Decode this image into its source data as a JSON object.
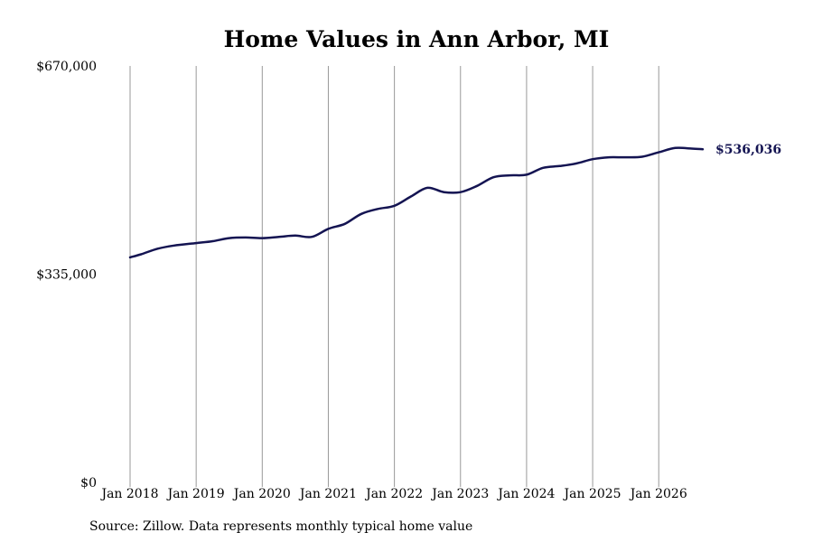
{
  "chart_data": {
    "type": "line",
    "title": "Home Values in Ann Arbor, MI",
    "xlabel": "",
    "ylabel": "",
    "ylim": [
      0,
      670000
    ],
    "xlim": [
      "2018-01",
      "2026-09"
    ],
    "y_ticks": [
      {
        "value": 0,
        "label": "$0"
      },
      {
        "value": 335000,
        "label": "$335,000"
      },
      {
        "value": 670000,
        "label": "$670,000"
      }
    ],
    "x_ticks": [
      {
        "date": "2018-01",
        "label": "Jan 2018"
      },
      {
        "date": "2019-01",
        "label": "Jan 2019"
      },
      {
        "date": "2020-01",
        "label": "Jan 2020"
      },
      {
        "date": "2021-01",
        "label": "Jan 2021"
      },
      {
        "date": "2022-01",
        "label": "Jan 2022"
      },
      {
        "date": "2023-01",
        "label": "Jan 2023"
      },
      {
        "date": "2024-01",
        "label": "Jan 2024"
      },
      {
        "date": "2025-01",
        "label": "Jan 2025"
      },
      {
        "date": "2026-01",
        "label": "Jan 2026"
      }
    ],
    "vertical_grid": true,
    "horizontal_grid": false,
    "line_color": "#141452",
    "series": [
      {
        "values": [
          {
            "x": "2018-01",
            "y": 362000
          },
          {
            "x": "2018-03",
            "y": 367000
          },
          {
            "x": "2018-06",
            "y": 376000
          },
          {
            "x": "2018-09",
            "y": 381000
          },
          {
            "x": "2019-01",
            "y": 385000
          },
          {
            "x": "2019-04",
            "y": 388000
          },
          {
            "x": "2019-07",
            "y": 393000
          },
          {
            "x": "2019-10",
            "y": 394000
          },
          {
            "x": "2020-01",
            "y": 393000
          },
          {
            "x": "2020-04",
            "y": 395000
          },
          {
            "x": "2020-07",
            "y": 397000
          },
          {
            "x": "2020-10",
            "y": 395000
          },
          {
            "x": "2021-01",
            "y": 408000
          },
          {
            "x": "2021-04",
            "y": 416000
          },
          {
            "x": "2021-07",
            "y": 432000
          },
          {
            "x": "2021-10",
            "y": 440000
          },
          {
            "x": "2022-01",
            "y": 445000
          },
          {
            "x": "2022-04",
            "y": 460000
          },
          {
            "x": "2022-07",
            "y": 474000
          },
          {
            "x": "2022-10",
            "y": 467000
          },
          {
            "x": "2023-01",
            "y": 467000
          },
          {
            "x": "2023-04",
            "y": 477000
          },
          {
            "x": "2023-07",
            "y": 491000
          },
          {
            "x": "2023-10",
            "y": 494000
          },
          {
            "x": "2024-01",
            "y": 495000
          },
          {
            "x": "2024-04",
            "y": 506000
          },
          {
            "x": "2024-07",
            "y": 509000
          },
          {
            "x": "2024-10",
            "y": 513000
          },
          {
            "x": "2025-01",
            "y": 520000
          },
          {
            "x": "2025-04",
            "y": 523000
          },
          {
            "x": "2025-07",
            "y": 523000
          },
          {
            "x": "2025-10",
            "y": 524000
          },
          {
            "x": "2026-01",
            "y": 531000
          },
          {
            "x": "2026-04",
            "y": 538000
          },
          {
            "x": "2026-07",
            "y": 537000
          },
          {
            "x": "2026-09",
            "y": 536036
          }
        ]
      }
    ],
    "annotations": [
      {
        "text": "$536,036",
        "x": "2026-09",
        "y": 536036
      }
    ]
  },
  "footer": {
    "source": "Source: Zillow. Data represents monthly typical home value"
  }
}
